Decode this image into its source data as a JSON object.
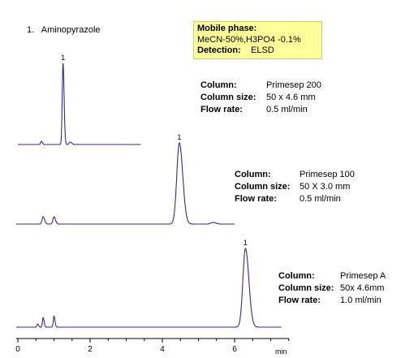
{
  "legend": {
    "number": "1.",
    "compound": "Aminopyrazole"
  },
  "mobile_phase": {
    "title": "Mobile phase:",
    "composition": "MeCN-50%,H3PO4 -0.1%",
    "detection_label": "Detection:",
    "detection_value": "ELSD"
  },
  "conditions": [
    {
      "column_label": "Column:",
      "column": "Primesep 200",
      "size_label": "Column size:",
      "size": "50 x 4.6 mm",
      "flow_label": "Flow rate:",
      "flow": "0.5 ml/min"
    },
    {
      "column_label": "Column:",
      "column": "Primesep 100",
      "size_label": "Column size:",
      "size": "50 X 3.0 mm",
      "flow_label": "Flow rate:",
      "flow": "0.5 ml/min"
    },
    {
      "column_label": "Column:",
      "column": "Primesep A",
      "size_label": "Column size:",
      "size": "50x 4.6mm",
      "flow_label": "Flow rate:",
      "flow": "1.0 ml/min"
    }
  ],
  "colors": {
    "trace": "#2e2e8e",
    "axis": "#000000",
    "highlight": "#ffff99"
  },
  "chart_data": {
    "type": "line",
    "xlabel": "min",
    "xlim": [
      -0.05,
      7.5
    ],
    "xticks": [
      0,
      2,
      4,
      6
    ],
    "series": [
      {
        "name": "Primesep 200",
        "x_end": 3.4,
        "peaks": [
          {
            "label": "1",
            "rt": 1.25,
            "height": 1.0,
            "width": 0.022
          },
          {
            "label": "",
            "rt": 0.65,
            "height": 0.04,
            "width": 0.02
          },
          {
            "label": "",
            "rt": 1.45,
            "height": 0.03,
            "width": 0.03
          }
        ]
      },
      {
        "name": "Primesep 100",
        "x_end": 6.0,
        "peaks": [
          {
            "label": "1",
            "rt": 4.47,
            "height": 1.0,
            "width": 0.07
          },
          {
            "label": "",
            "rt": 0.7,
            "height": 0.09,
            "width": 0.03
          },
          {
            "label": "",
            "rt": 1.0,
            "height": 0.09,
            "width": 0.03
          },
          {
            "label": "",
            "rt": 5.4,
            "height": 0.02,
            "width": 0.06
          }
        ]
      },
      {
        "name": "Primesep A",
        "x_end": 7.3,
        "peaks": [
          {
            "label": "1",
            "rt": 6.3,
            "height": 1.0,
            "width": 0.07
          },
          {
            "label": "",
            "rt": 0.55,
            "height": 0.04,
            "width": 0.02
          },
          {
            "label": "",
            "rt": 0.7,
            "height": 0.12,
            "width": 0.02
          },
          {
            "label": "",
            "rt": 1.0,
            "height": 0.14,
            "width": 0.02
          }
        ]
      }
    ]
  }
}
